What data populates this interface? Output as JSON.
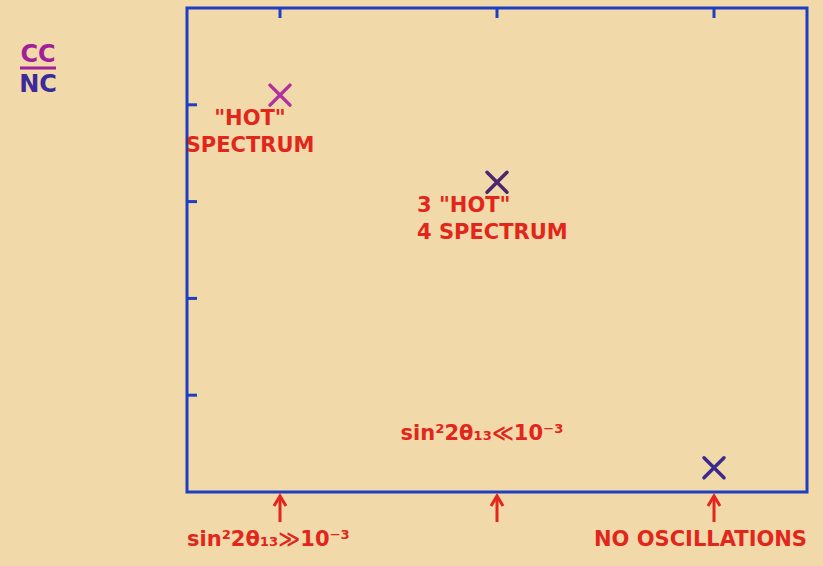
{
  "chart_data": {
    "type": "scatter",
    "ylabel": {
      "numerator": "CC",
      "denominator": "NC"
    },
    "categories": [
      "sin²2θ₁₃≫10⁻³",
      "sin²2θ₁₃≪10⁻³",
      "NO OSCILLATIONS"
    ],
    "series": [
      {
        "values": [
          4.1,
          3.2,
          0.25
        ],
        "colors": [
          "#b0309f",
          "#4a2570",
          "#3a2a8c"
        ],
        "labels": [
          [
            "\"HOT\"",
            "SPECTRUM"
          ],
          [
            "3 \"HOT\"",
            "4 SPECTRUM"
          ],
          null
        ],
        "marker": "x"
      }
    ],
    "ylim": [
      0,
      5
    ],
    "yticks": [
      1,
      2,
      3,
      4
    ],
    "tick_labels": false,
    "grid": false
  }
}
